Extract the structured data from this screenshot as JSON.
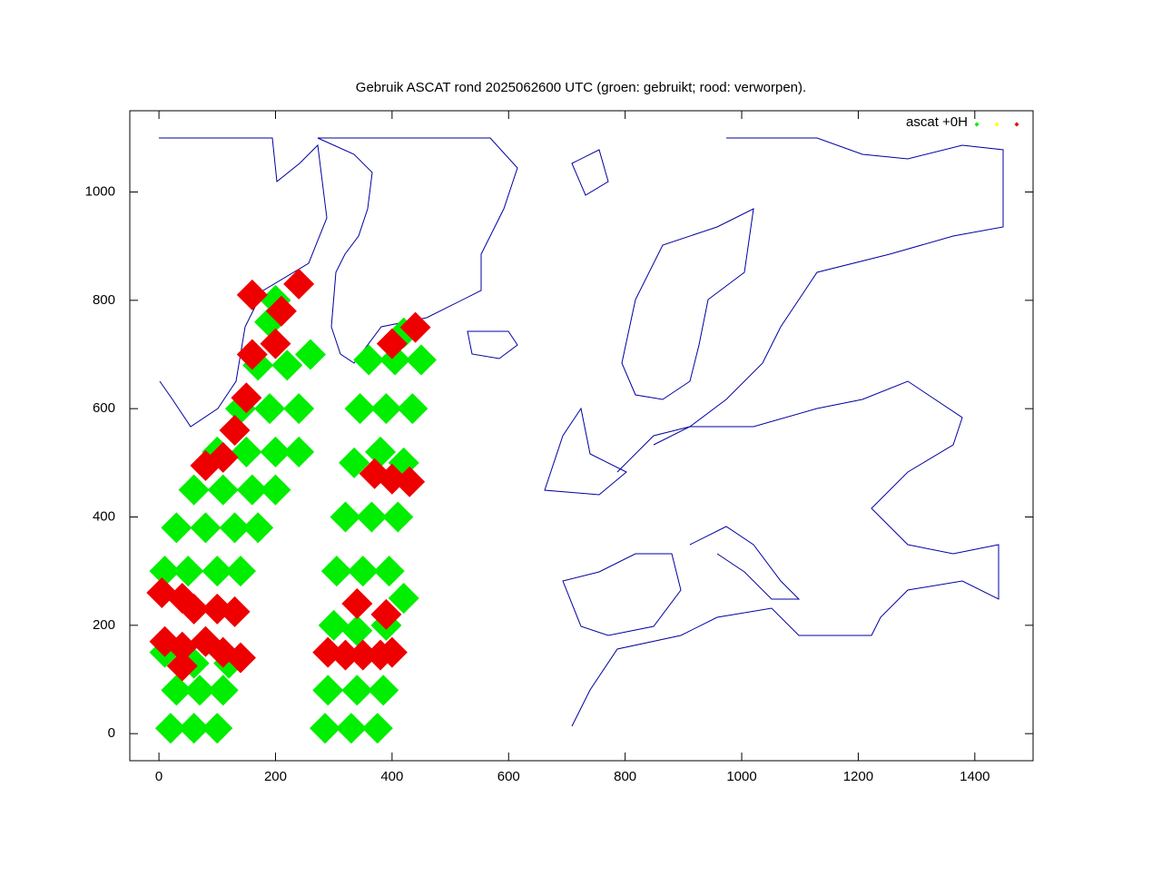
{
  "chart_data": {
    "type": "scatter",
    "title": "Gebruik ASCAT rond 2025062600 UTC (groen: gebruikt; rood: verworpen).",
    "legend_label": "ascat +0H",
    "legend_position": "top-right",
    "xlim": [
      -50,
      1500
    ],
    "ylim": [
      -50,
      1150
    ],
    "xticks": [
      0,
      200,
      400,
      600,
      800,
      1000,
      1200,
      1400
    ],
    "yticks": [
      0,
      200,
      400,
      600,
      800,
      1000
    ],
    "series": [
      {
        "color": "#00ee00",
        "x": [
          20,
          60,
          100,
          30,
          70,
          110,
          10,
          60,
          120,
          10,
          50,
          100,
          140,
          30,
          80,
          130,
          170,
          60,
          110,
          160,
          200,
          100,
          150,
          200,
          240,
          140,
          190,
          240,
          170,
          220,
          260,
          190,
          200,
          285,
          330,
          375,
          290,
          340,
          385,
          300,
          340,
          390,
          305,
          350,
          395,
          420,
          320,
          365,
          410,
          335,
          380,
          420,
          345,
          390,
          435,
          360,
          405,
          450,
          420
        ],
        "y": [
          10,
          10,
          10,
          80,
          80,
          80,
          150,
          130,
          130,
          300,
          300,
          300,
          300,
          380,
          380,
          380,
          380,
          450,
          450,
          450,
          450,
          520,
          520,
          520,
          520,
          600,
          600,
          600,
          680,
          680,
          700,
          760,
          800,
          10,
          10,
          10,
          80,
          80,
          80,
          200,
          190,
          200,
          300,
          300,
          300,
          250,
          400,
          400,
          400,
          500,
          520,
          500,
          600,
          600,
          600,
          690,
          690,
          690,
          740
        ]
      },
      {
        "color": "#ffff00",
        "x": [],
        "y": []
      },
      {
        "color": "#ee0000",
        "x": [
          5,
          40,
          60,
          100,
          130,
          10,
          40,
          80,
          110,
          140,
          40,
          290,
          320,
          350,
          380,
          400,
          340,
          390,
          370,
          400,
          430,
          80,
          110,
          130,
          150,
          160,
          200,
          210,
          240,
          160,
          400,
          440
        ],
        "y": [
          260,
          250,
          230,
          230,
          225,
          170,
          160,
          170,
          150,
          140,
          125,
          150,
          145,
          145,
          145,
          150,
          240,
          220,
          480,
          470,
          465,
          495,
          510,
          560,
          620,
          700,
          720,
          780,
          830,
          810,
          720,
          750
        ]
      }
    ]
  }
}
